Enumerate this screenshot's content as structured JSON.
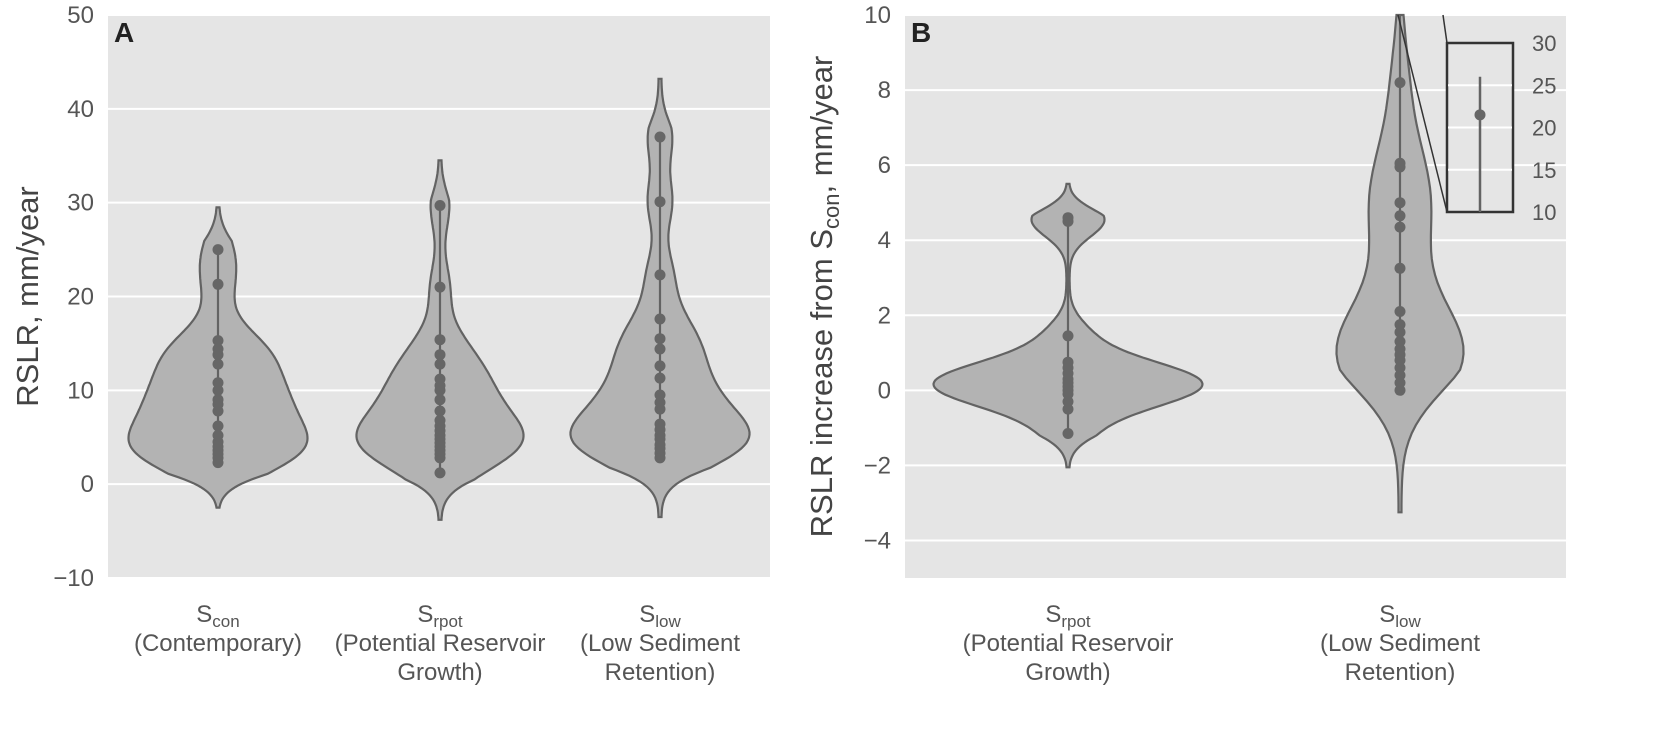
{
  "chart_data": [
    {
      "type": "violin",
      "panel_label": "A",
      "ylabel": "RSLR, mm/year",
      "ylim": [
        -10,
        50
      ],
      "yticks": [
        "−10",
        "0",
        "10",
        "20",
        "30",
        "40",
        "50"
      ],
      "grid": true,
      "categories": [
        {
          "main": "S",
          "sub": "con",
          "line2": "(Contemporary)",
          "line3": ""
        },
        {
          "main": "S",
          "sub": "rpot",
          "line2": "(Potential Reservoir",
          "line3": "Growth)"
        },
        {
          "main": "S",
          "sub": "low",
          "line2": "(Low Sediment",
          "line3": "Retention)"
        }
      ],
      "series": [
        {
          "points": [
            2.3,
            2.8,
            3.2,
            3.6,
            4.0,
            4.5,
            5.2,
            6.2,
            7.8,
            8.5,
            9.0,
            10.0,
            10.8,
            12.8,
            13.8,
            14.4,
            15.3,
            21.3,
            25.0
          ],
          "min": -2.5,
          "max": 29.5
        },
        {
          "points": [
            1.2,
            2.8,
            3.2,
            3.6,
            4.0,
            4.4,
            4.8,
            5.2,
            5.7,
            6.2,
            6.8,
            7.8,
            9.0,
            10.0,
            10.5,
            11.2,
            12.8,
            13.8,
            15.4,
            21.0,
            29.7
          ],
          "min": -3.8,
          "max": 34.5
        },
        {
          "points": [
            2.8,
            3.3,
            3.8,
            4.2,
            4.8,
            5.2,
            5.8,
            6.4,
            8.0,
            8.7,
            9.5,
            11.3,
            12.6,
            14.4,
            15.5,
            17.6,
            22.3,
            30.1,
            37.0
          ],
          "min": -3.5,
          "max": 43.2
        }
      ]
    },
    {
      "type": "violin",
      "panel_label": "B",
      "ylabel_main": "RSLR increase from S",
      "ylabel_sub": "con",
      "ylabel_end": ",  mm/year",
      "ylim": [
        -5,
        10
      ],
      "yticks": [
        "−4",
        "−2",
        "0",
        "2",
        "4",
        "6",
        "8",
        "10"
      ],
      "grid": true,
      "categories": [
        {
          "main": "S",
          "sub": "rpot",
          "line2": "(Potential Reservoir",
          "line3": "Growth)"
        },
        {
          "main": "S",
          "sub": "low",
          "line2": "(Low Sediment",
          "line3": "Retention)"
        }
      ],
      "series": [
        {
          "points": [
            -1.15,
            -0.5,
            -0.3,
            -0.1,
            0.0,
            0.1,
            0.2,
            0.3,
            0.45,
            0.6,
            0.75,
            1.45,
            4.5,
            4.6
          ],
          "min": -2.05,
          "max": 5.5
        },
        {
          "points": [
            0.0,
            0.2,
            0.4,
            0.6,
            0.8,
            0.95,
            1.1,
            1.3,
            1.55,
            1.75,
            2.1,
            3.25,
            4.35,
            4.65,
            5.0,
            5.95,
            6.05,
            8.2,
            21.5
          ],
          "min": -3.25,
          "max": 30.5
        }
      ],
      "inset": {
        "yticks": [
          "30",
          "25",
          "20",
          "15",
          "10"
        ],
        "ylim": [
          10,
          30
        ],
        "mean": 21.5,
        "whisker": [
          10,
          26
        ]
      }
    }
  ]
}
